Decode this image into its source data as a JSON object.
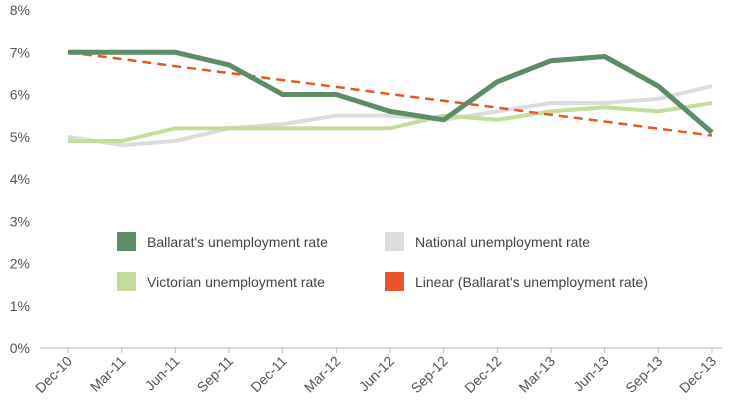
{
  "chart_data": {
    "type": "line",
    "x": [
      "Dec-10",
      "Mar-11",
      "Jun-11",
      "Sep-11",
      "Dec-11",
      "Mar-12",
      "Jun-12",
      "Sep-12",
      "Dec-12",
      "Mar-13",
      "Jun-13",
      "Sep-13",
      "Dec-13"
    ],
    "ylim": [
      0,
      8
    ],
    "ytick_values": [
      0,
      1,
      2,
      3,
      4,
      5,
      6,
      7,
      8
    ],
    "ytick_labels": [
      "0%",
      "1%",
      "2%",
      "3%",
      "4%",
      "5%",
      "6%",
      "7%",
      "8%"
    ],
    "grid": false,
    "legend_position": "lower-center",
    "series": [
      {
        "name": "Ballarat's unemployment rate",
        "style": "solid-thick",
        "color": "#5e8c67",
        "values": [
          7.0,
          7.0,
          7.0,
          6.7,
          6.0,
          6.0,
          5.6,
          5.4,
          6.3,
          6.8,
          6.9,
          6.2,
          5.1
        ]
      },
      {
        "name": "National unemployment rate",
        "style": "solid",
        "color": "#dcdcdc",
        "values": [
          5.0,
          4.8,
          4.9,
          5.2,
          5.3,
          5.5,
          5.5,
          5.4,
          5.6,
          5.8,
          5.8,
          5.9,
          6.2
        ]
      },
      {
        "name": "Victorian unemployment rate",
        "style": "solid",
        "color": "#c4dd9c",
        "values": [
          4.9,
          4.9,
          5.2,
          5.2,
          5.2,
          5.2,
          5.2,
          5.5,
          5.4,
          5.6,
          5.7,
          5.6,
          5.8
        ]
      },
      {
        "name": "Linear (Ballarat's unemployment rate)",
        "style": "dashed",
        "color": "#e8552a",
        "values": [
          7.0,
          6.84,
          6.67,
          6.51,
          6.34,
          6.18,
          6.01,
          5.85,
          5.69,
          5.52,
          5.36,
          5.19,
          5.03
        ]
      }
    ],
    "legend": [
      {
        "label": "Ballarat's unemployment rate",
        "series": 0
      },
      {
        "label": "National unemployment rate",
        "series": 1
      },
      {
        "label": "Victorian unemployment rate",
        "series": 2
      },
      {
        "label": "Linear (Ballarat's unemployment rate)",
        "series": 3
      }
    ]
  }
}
